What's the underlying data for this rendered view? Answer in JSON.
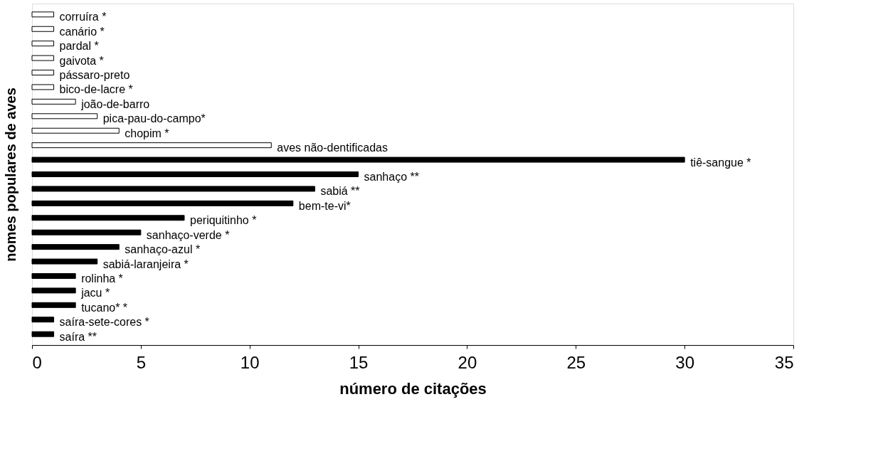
{
  "chart_data": {
    "type": "bar",
    "orientation": "horizontal",
    "xlabel": "número de citações",
    "ylabel": "nomes populares de aves",
    "categories": [
      "corruíra *",
      "canário *",
      "pardal *",
      "gaivota *",
      "pássaro-preto",
      "bico-de-lacre *",
      "joão-de-barro",
      "pica-pau-do-campo*",
      "chopim *",
      "aves não-dentificadas",
      "tiê-sangue *",
      "sanhaço **",
      "sabiá **",
      "bem-te-vi*",
      "periquitinho *",
      "sanhaço-verde *",
      "sanhaço-azul *",
      "sabiá-laranjeira *",
      "rolinha *",
      "jacu *",
      "tucano* *",
      "saíra-sete-cores *",
      "saíra **"
    ],
    "values": [
      1,
      1,
      1,
      1,
      1,
      1,
      2,
      3,
      4,
      11,
      30,
      15,
      13,
      12,
      7,
      5,
      4,
      3,
      2,
      2,
      2,
      1,
      1
    ],
    "colors": [
      "#ffffff",
      "#ffffff",
      "#ffffff",
      "#ffffff",
      "#ffffff",
      "#ffffff",
      "#ffffff",
      "#ffffff",
      "#ffffff",
      "#ffffff",
      "#000000",
      "#000000",
      "#000000",
      "#000000",
      "#000000",
      "#000000",
      "#000000",
      "#000000",
      "#000000",
      "#000000",
      "#000000",
      "#000000",
      "#000000"
    ],
    "xlim": [
      0,
      35
    ],
    "xticks": [
      0,
      5,
      10,
      15,
      20,
      25,
      30,
      35
    ],
    "tick_labels": "x",
    "grid": false
  }
}
